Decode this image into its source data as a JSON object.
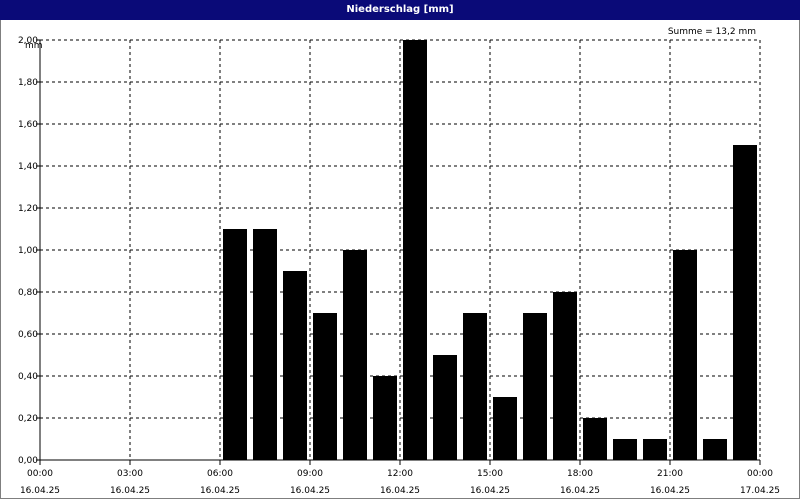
{
  "window": {
    "title": "Niederschlag [mm]"
  },
  "chart_data": {
    "type": "bar",
    "title": "Niederschlag [mm]",
    "unit_label": "mm",
    "annotation": "Summe = 13,2 mm",
    "ylim": [
      0,
      2.0
    ],
    "y_ticks": [
      "0,00",
      "0,20",
      "0,40",
      "0,60",
      "0,80",
      "1,00",
      "1,20",
      "1,40",
      "1,60",
      "1,80",
      "2,00"
    ],
    "x_range_hours": [
      0,
      24
    ],
    "x_ticks": [
      {
        "hour": 0,
        "time": "00:00",
        "date": "16.04.25"
      },
      {
        "hour": 3,
        "time": "03:00",
        "date": "16.04.25"
      },
      {
        "hour": 6,
        "time": "06:00",
        "date": "16.04.25"
      },
      {
        "hour": 9,
        "time": "09:00",
        "date": "16.04.25"
      },
      {
        "hour": 12,
        "time": "12:00",
        "date": "16.04.25"
      },
      {
        "hour": 15,
        "time": "15:00",
        "date": "16.04.25"
      },
      {
        "hour": 18,
        "time": "18:00",
        "date": "16.04.25"
      },
      {
        "hour": 21,
        "time": "21:00",
        "date": "16.04.25"
      },
      {
        "hour": 24,
        "time": "00:00",
        "date": "17.04.25"
      }
    ],
    "bars": [
      {
        "hour": 7,
        "value": 1.1
      },
      {
        "hour": 8,
        "value": 1.1
      },
      {
        "hour": 9,
        "value": 0.9
      },
      {
        "hour": 10,
        "value": 0.7
      },
      {
        "hour": 11,
        "value": 1.0
      },
      {
        "hour": 12,
        "value": 0.4
      },
      {
        "hour": 13,
        "value": 2.0
      },
      {
        "hour": 14,
        "value": 0.5
      },
      {
        "hour": 15,
        "value": 0.7
      },
      {
        "hour": 16,
        "value": 0.3
      },
      {
        "hour": 17,
        "value": 0.7
      },
      {
        "hour": 18,
        "value": 0.8
      },
      {
        "hour": 19,
        "value": 0.2
      },
      {
        "hour": 20,
        "value": 0.1
      },
      {
        "hour": 21,
        "value": 0.1
      },
      {
        "hour": 22,
        "value": 1.0
      },
      {
        "hour": 23,
        "value": 0.1
      },
      {
        "hour": 24,
        "value": 1.5
      }
    ],
    "grid": true,
    "colors": {
      "bar": "#000000",
      "title_bar": "#0a0a78",
      "grid": "#000000"
    }
  }
}
